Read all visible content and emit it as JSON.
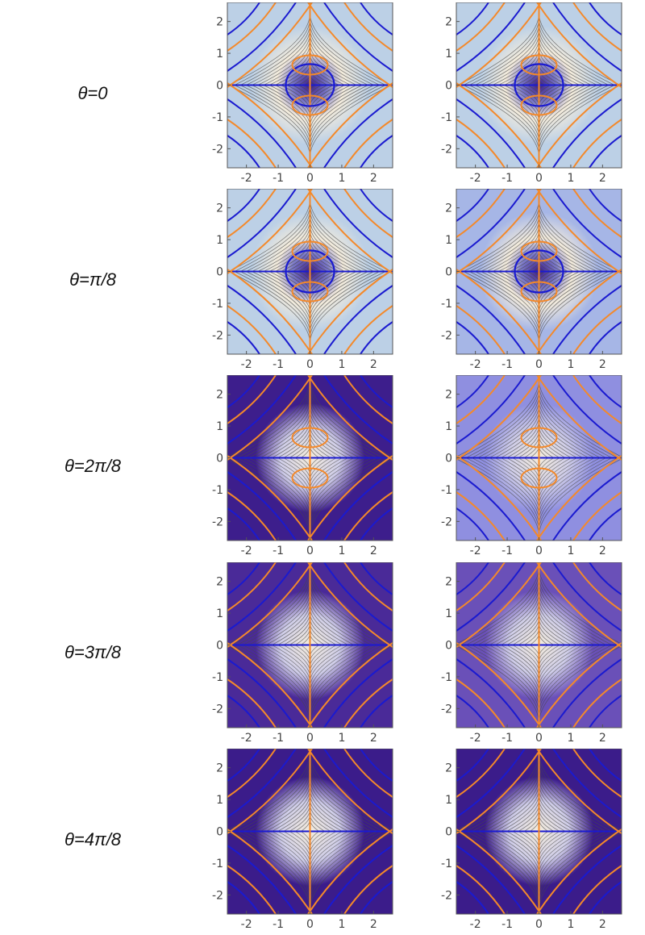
{
  "rows": [
    {
      "label": "θ=0"
    },
    {
      "label": "θ=π/8"
    },
    {
      "label": "θ=2π/8"
    },
    {
      "label": "θ=3π/8"
    },
    {
      "label": "θ=4π/8"
    }
  ],
  "chart_data": {
    "type": "contour",
    "layout": "5 rows x 2 columns of contour plots",
    "xlim": [
      -2.6,
      2.6
    ],
    "ylim": [
      -2.6,
      2.6
    ],
    "x_ticks": [
      "-2",
      "-1",
      "0",
      "1",
      "2"
    ],
    "y_ticks": [
      "2",
      "1",
      "0",
      "-1",
      "-2"
    ],
    "x_tick_values": [
      -2,
      -1,
      0,
      1,
      2
    ],
    "y_tick_values": [
      2,
      1,
      0,
      -1,
      -2
    ],
    "colors": {
      "contour_line": "#4a4a4a",
      "curve_blue": "#1a1ad0",
      "curve_orange": "#f4892a",
      "light_fill": "#f4ecdc",
      "dark_fill": "#3b1c8a",
      "frame": "#555555"
    },
    "panels": [
      {
        "row": 0,
        "col": 0,
        "theta": "θ=0"
      },
      {
        "row": 0,
        "col": 1,
        "theta": "θ=0"
      },
      {
        "row": 1,
        "col": 0,
        "theta": "θ=π/8"
      },
      {
        "row": 1,
        "col": 1,
        "theta": "θ=π/8"
      },
      {
        "row": 2,
        "col": 0,
        "theta": "θ=2π/8"
      },
      {
        "row": 2,
        "col": 1,
        "theta": "θ=2π/8"
      },
      {
        "row": 3,
        "col": 0,
        "theta": "θ=3π/8"
      },
      {
        "row": 3,
        "col": 1,
        "theta": "θ=3π/8"
      },
      {
        "row": 4,
        "col": 0,
        "theta": "θ=4π/8"
      },
      {
        "row": 4,
        "col": 1,
        "theta": "θ=4π/8"
      }
    ]
  }
}
